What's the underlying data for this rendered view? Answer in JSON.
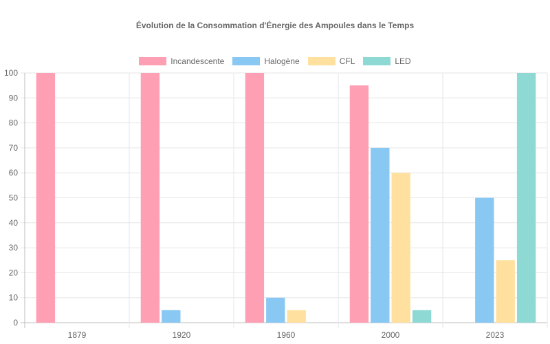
{
  "chart_data": {
    "type": "bar",
    "title": "Évolution de la Consommation d'Énergie des Ampoules dans le Temps",
    "categories": [
      "1879",
      "1920",
      "1960",
      "2000",
      "2023"
    ],
    "series": [
      {
        "name": "Incandescente",
        "values": [
          100,
          100,
          100,
          95,
          0
        ],
        "color": "#FF9FB3"
      },
      {
        "name": "Halogène",
        "values": [
          0,
          5,
          10,
          70,
          50
        ],
        "color": "#88C8F2"
      },
      {
        "name": "CFL",
        "values": [
          0,
          0,
          5,
          60,
          25
        ],
        "color": "#FFE09E"
      },
      {
        "name": "LED",
        "values": [
          0,
          0,
          0,
          5,
          100
        ],
        "color": "#8FD9D5"
      }
    ],
    "ylim": [
      0,
      100
    ],
    "y_ticks": [
      0,
      10,
      20,
      30,
      40,
      50,
      60,
      70,
      80,
      90,
      100
    ],
    "grid": true,
    "legend_position": "top"
  }
}
